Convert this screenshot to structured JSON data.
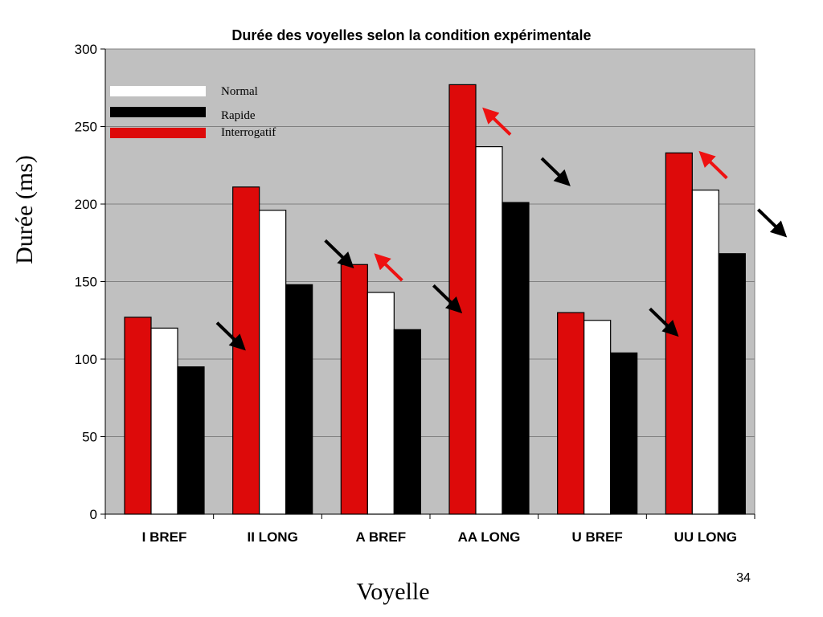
{
  "slide": {
    "page_number": "34"
  },
  "colors": {
    "plot_background": "#c0c0c0",
    "gridline": "#808080",
    "interrogatif": "#dd0a0a",
    "normal": "#ffffff",
    "rapide": "#000000",
    "arrow_red": "#ee1111",
    "arrow_black": "#000000"
  },
  "chart_data": {
    "type": "bar",
    "title": "Durée des voyelles selon la condition expérimentale",
    "xlabel": "Voyelle",
    "ylabel": "Durée (ms)",
    "ylim": [
      0,
      300
    ],
    "yticks": [
      0,
      50,
      100,
      150,
      200,
      250,
      300
    ],
    "grid": true,
    "legend_position": "top-left",
    "categories": [
      "I BREF",
      "II LONG",
      "A BREF",
      "AA LONG",
      "U BREF",
      "UU LONG"
    ],
    "series": [
      {
        "name": "Interrogatif",
        "color": "#dd0a0a",
        "values": [
          127,
          211,
          161,
          277,
          130,
          233
        ]
      },
      {
        "name": "Normal",
        "color": "#ffffff",
        "values": [
          120,
          196,
          143,
          237,
          125,
          209
        ]
      },
      {
        "name": "Rapide",
        "color": "#000000",
        "values": [
          95,
          148,
          119,
          201,
          104,
          168
        ]
      }
    ],
    "legend": [
      {
        "label": "Normal",
        "color": "#ffffff"
      },
      {
        "label": "Rapide",
        "color": "#000000"
      },
      {
        "label": "Interrogatif",
        "color": "#dd0a0a"
      }
    ],
    "annotations": {
      "red_up_arrows": [
        "A BREF",
        "AA LONG",
        "UU LONG"
      ],
      "black_down_arrows": [
        "I BREF",
        "II LONG",
        "A BREF",
        "AA LONG",
        "U BREF",
        "UU LONG"
      ]
    }
  }
}
